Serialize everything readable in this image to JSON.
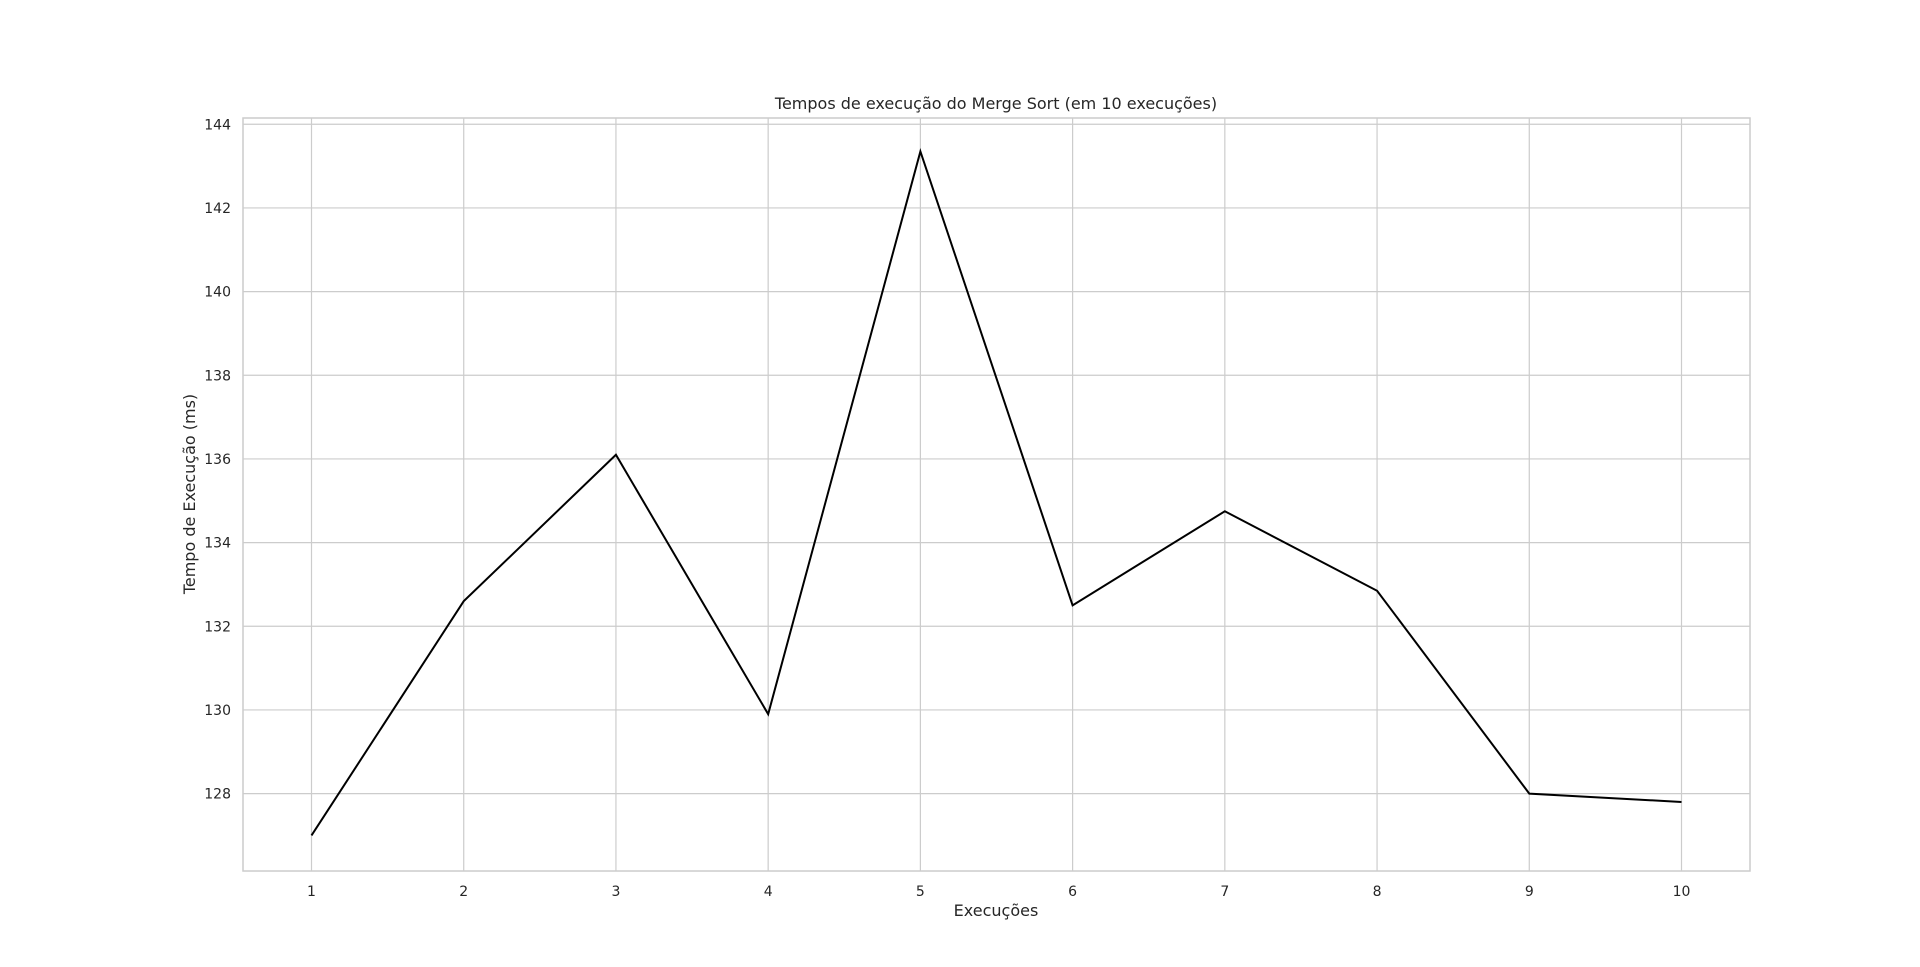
{
  "chart_data": {
    "type": "line",
    "title": "Tempos de execução do Merge Sort (em 10 execuções)",
    "xlabel": "Execuções",
    "ylabel": "Tempo de Execução (ms)",
    "x": [
      1,
      2,
      3,
      4,
      5,
      6,
      7,
      8,
      9,
      10
    ],
    "x_tick_labels": [
      "1",
      "2",
      "3",
      "4",
      "5",
      "6",
      "7",
      "8",
      "9",
      "10"
    ],
    "y_ticks": [
      128,
      130,
      132,
      134,
      136,
      138,
      140,
      142,
      144
    ],
    "y_tick_labels": [
      "128",
      "130",
      "132",
      "134",
      "136",
      "138",
      "140",
      "142",
      "144"
    ],
    "xlim": [
      0.55,
      10.45
    ],
    "ylim": [
      126.15,
      144.15
    ],
    "grid": true,
    "series": [
      {
        "values": [
          127.0,
          132.6,
          136.1,
          129.9,
          143.35,
          132.5,
          134.75,
          132.85,
          128.0,
          127.8
        ],
        "color": "#000000"
      }
    ]
  }
}
